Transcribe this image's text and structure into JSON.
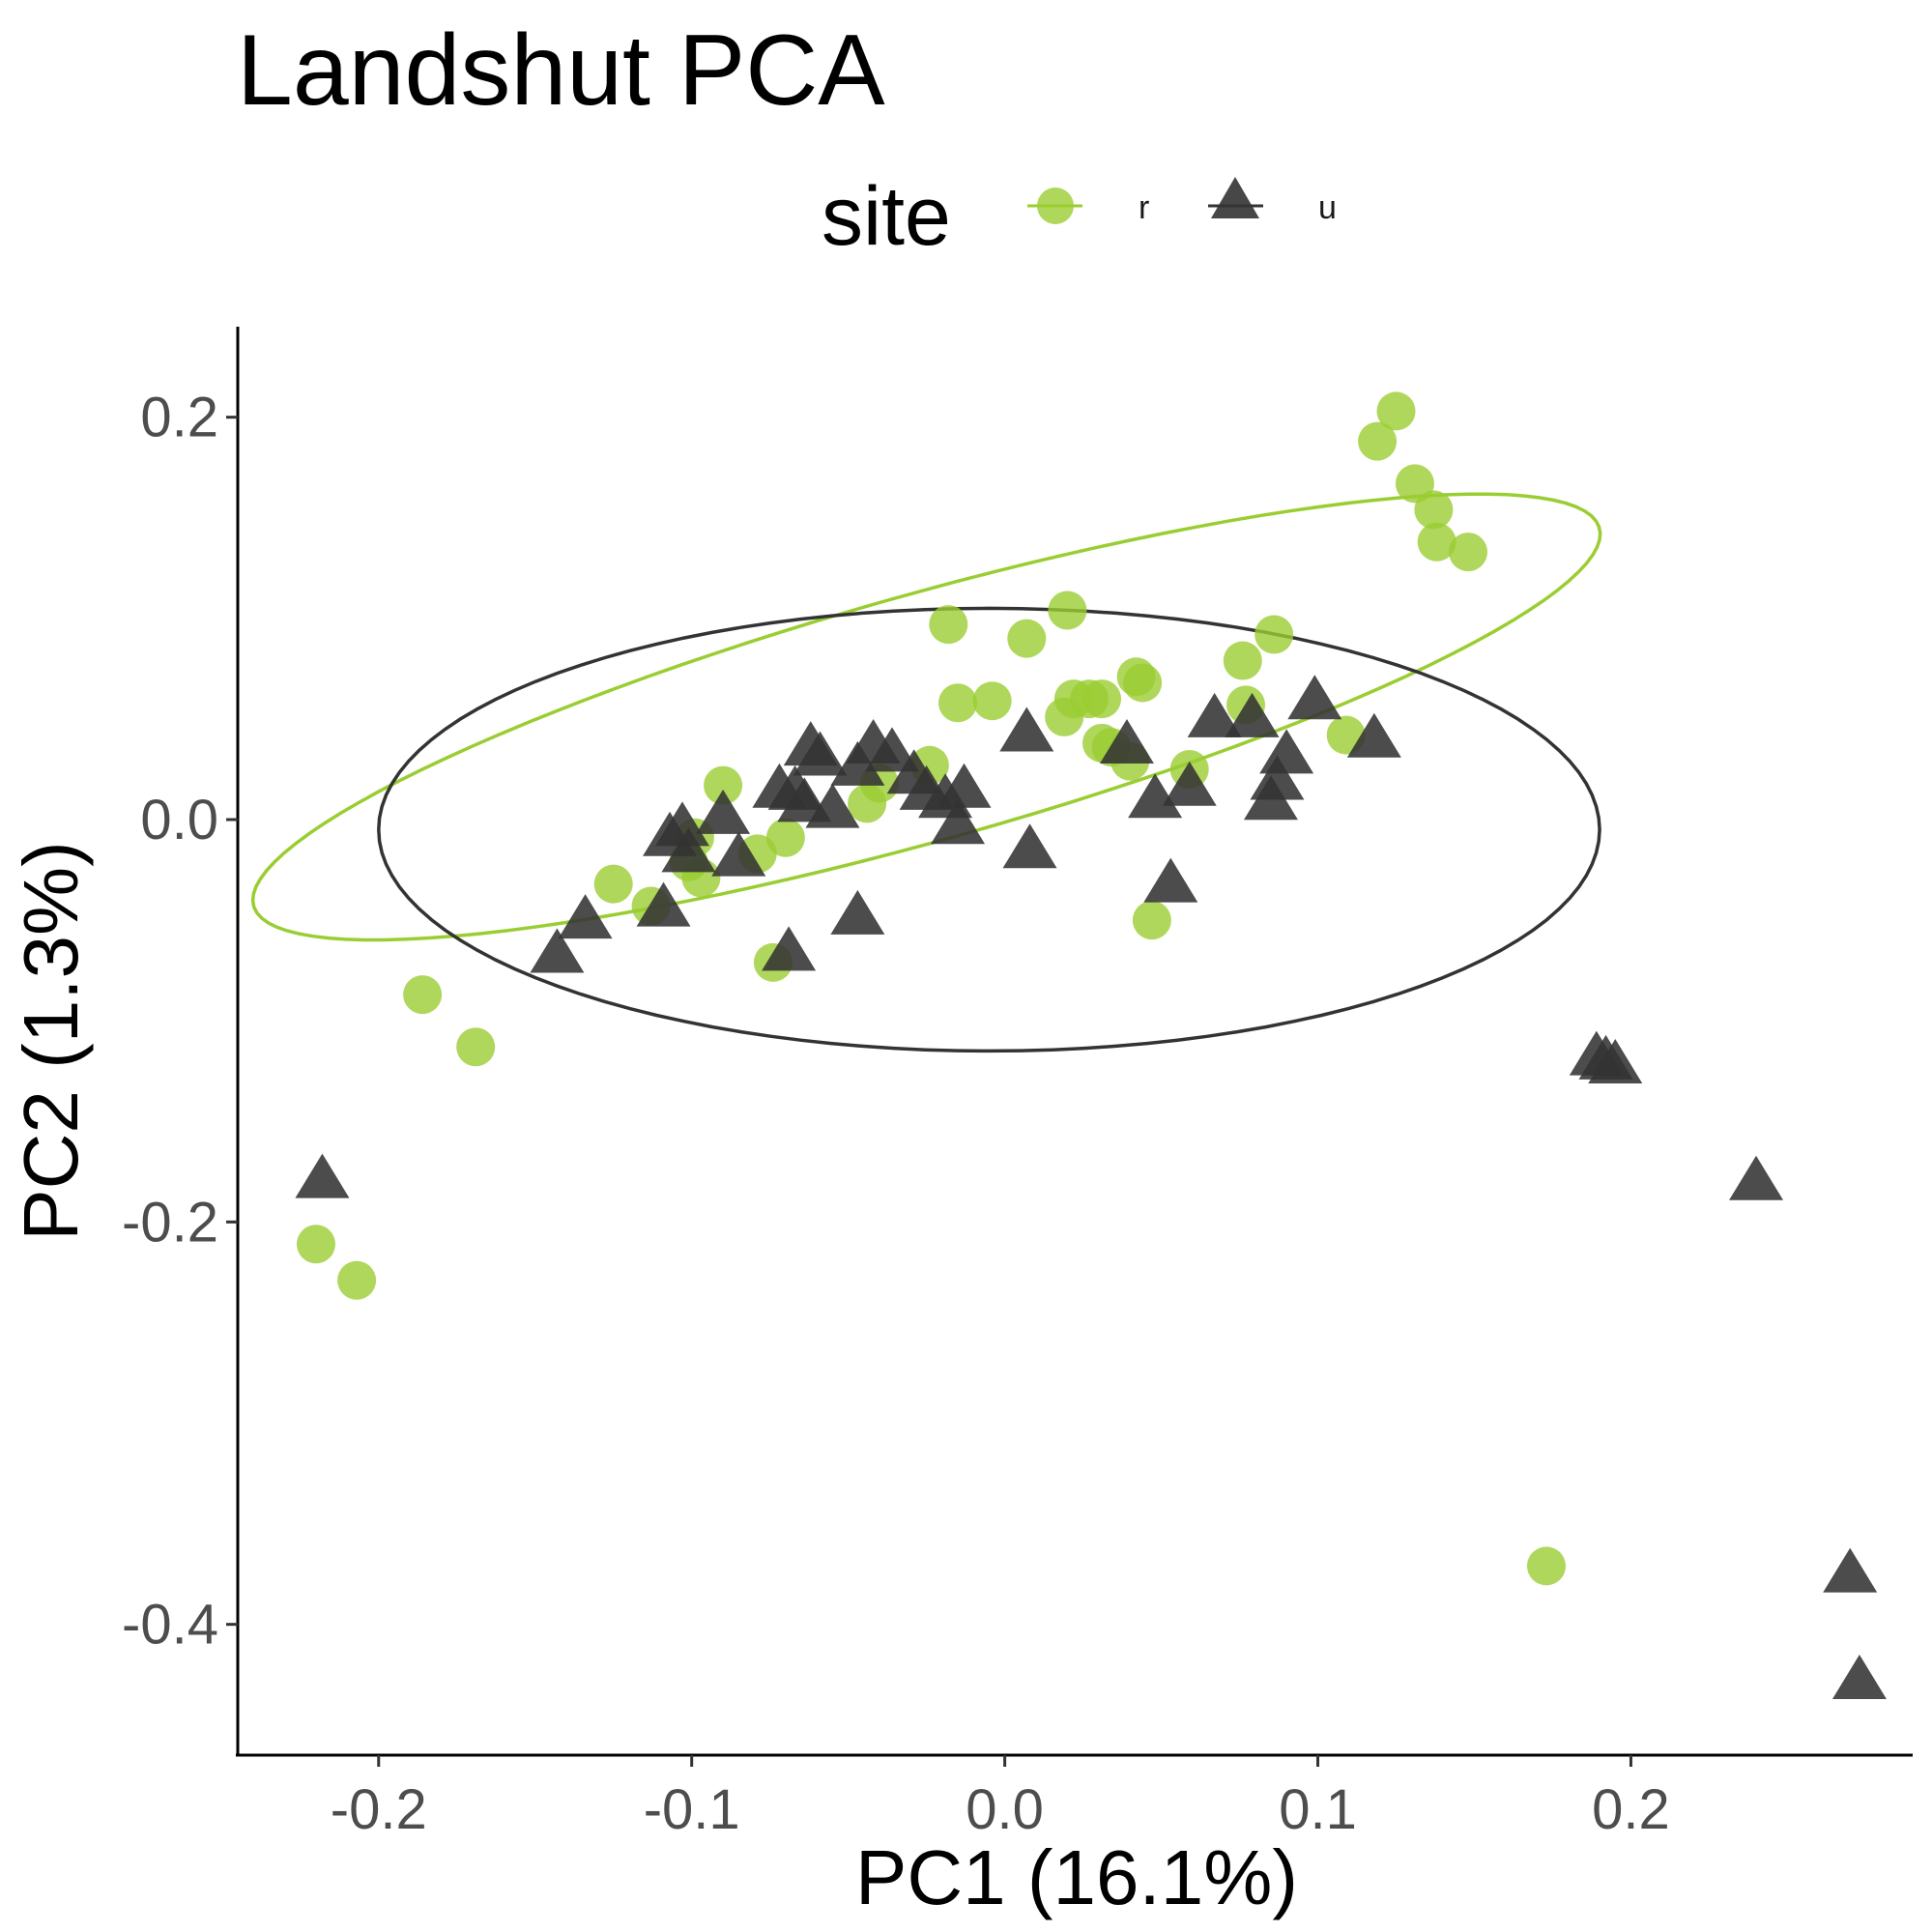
{
  "chart_data": {
    "type": "scatter",
    "title": "Landshut PCA",
    "xlabel": "PC1 (16.1%)",
    "ylabel": "PC2 (1.3%)",
    "xlim": [
      -0.245,
      0.29
    ],
    "ylim": [
      -0.465,
      0.245
    ],
    "x_ticks": [
      -0.2,
      -0.1,
      0.0,
      0.1,
      0.2
    ],
    "y_ticks": [
      -0.4,
      -0.2,
      0.0,
      0.2
    ],
    "x_tick_labels": [
      "-0.2",
      "-0.1",
      "0.0",
      "0.1",
      "0.2"
    ],
    "y_tick_labels": [
      "-0.4",
      "-0.2",
      "0.0",
      "0.2"
    ],
    "grid": false,
    "legend": {
      "title": "site",
      "position": "top"
    },
    "series": [
      {
        "name": "r",
        "marker": "circle",
        "color": "#9ACD32",
        "ellipse": {
          "cx": -0.025,
          "cy": 0.051,
          "rx": 0.235,
          "ry": 0.058,
          "angle_deg": 24.5
        },
        "points": [
          [
            0.125,
            0.203
          ],
          [
            0.119,
            0.188
          ],
          [
            0.131,
            0.167
          ],
          [
            0.137,
            0.154
          ],
          [
            0.138,
            0.138
          ],
          [
            0.148,
            0.133
          ],
          [
            0.02,
            0.104
          ],
          [
            -0.018,
            0.097
          ],
          [
            0.007,
            0.09
          ],
          [
            0.086,
            0.092
          ],
          [
            0.076,
            0.079
          ],
          [
            0.042,
            0.071
          ],
          [
            0.044,
            0.068
          ],
          [
            0.022,
            0.06
          ],
          [
            0.027,
            0.06
          ],
          [
            0.031,
            0.06
          ],
          [
            -0.015,
            0.058
          ],
          [
            -0.004,
            0.059
          ],
          [
            0.077,
            0.057
          ],
          [
            0.019,
            0.051
          ],
          [
            0.109,
            0.042
          ],
          [
            0.031,
            0.038
          ],
          [
            0.034,
            0.036
          ],
          [
            0.04,
            0.029
          ],
          [
            0.059,
            0.025
          ],
          [
            -0.09,
            0.017
          ],
          [
            -0.024,
            0.027
          ],
          [
            -0.04,
            0.018
          ],
          [
            -0.044,
            0.008
          ],
          [
            -0.07,
            -0.009
          ],
          [
            -0.079,
            -0.017
          ],
          [
            -0.099,
            -0.009
          ],
          [
            -0.101,
            -0.021
          ],
          [
            -0.097,
            -0.029
          ],
          [
            -0.125,
            -0.032
          ],
          [
            -0.113,
            -0.043
          ],
          [
            0.047,
            -0.05
          ],
          [
            -0.074,
            -0.071
          ],
          [
            -0.186,
            -0.087
          ],
          [
            -0.169,
            -0.113
          ],
          [
            -0.22,
            -0.211
          ],
          [
            -0.207,
            -0.229
          ],
          [
            0.173,
            -0.371
          ]
        ]
      },
      {
        "name": "u",
        "marker": "triangle",
        "color": "#333333",
        "ellipse": {
          "cx": -0.005,
          "cy": -0.005,
          "rx": 0.195,
          "ry": 0.11,
          "angle_deg": 0
        },
        "points": [
          [
            0.099,
            0.059
          ],
          [
            0.067,
            0.05
          ],
          [
            0.079,
            0.05
          ],
          [
            0.007,
            0.043
          ],
          [
            0.118,
            0.04
          ],
          [
            0.039,
            0.037
          ],
          [
            0.09,
            0.032
          ],
          [
            -0.042,
            0.037
          ],
          [
            -0.036,
            0.033
          ],
          [
            -0.062,
            0.036
          ],
          [
            -0.059,
            0.031
          ],
          [
            -0.047,
            0.026
          ],
          [
            -0.029,
            0.022
          ],
          [
            0.087,
            0.019
          ],
          [
            -0.013,
            0.015
          ],
          [
            -0.025,
            0.014
          ],
          [
            -0.019,
            0.01
          ],
          [
            -0.072,
            0.015
          ],
          [
            -0.067,
            0.014
          ],
          [
            -0.064,
            0.008
          ],
          [
            -0.055,
            0.005
          ],
          [
            -0.09,
            0.002
          ],
          [
            0.059,
            0.016
          ],
          [
            0.048,
            0.01
          ],
          [
            0.085,
            0.009
          ],
          [
            -0.015,
            -0.003
          ],
          [
            -0.103,
            -0.004
          ],
          [
            -0.107,
            -0.009
          ],
          [
            -0.101,
            -0.017
          ],
          [
            -0.085,
            -0.019
          ],
          [
            0.008,
            -0.015
          ],
          [
            0.053,
            -0.032
          ],
          [
            -0.047,
            -0.048
          ],
          [
            -0.134,
            -0.05
          ],
          [
            -0.109,
            -0.044
          ],
          [
            -0.069,
            -0.066
          ],
          [
            -0.143,
            -0.067
          ],
          [
            0.189,
            -0.118
          ],
          [
            0.192,
            -0.12
          ],
          [
            0.195,
            -0.122
          ],
          [
            0.24,
            -0.18
          ],
          [
            -0.218,
            -0.179
          ],
          [
            0.27,
            -0.375
          ],
          [
            0.273,
            -0.428
          ]
        ]
      }
    ]
  }
}
